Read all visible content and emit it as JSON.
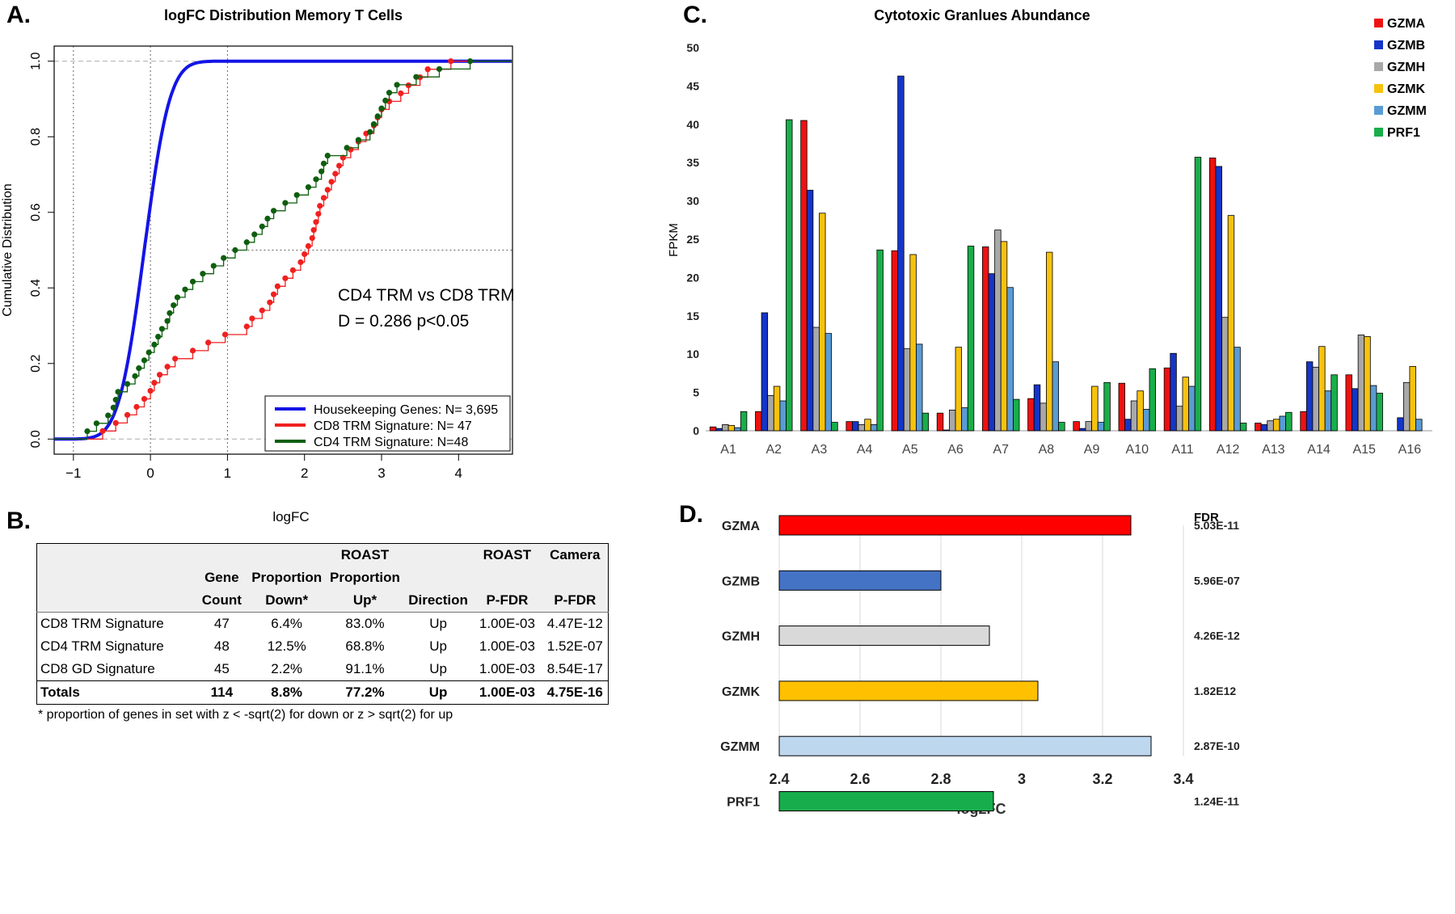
{
  "panels": {
    "a": {
      "letter": "A."
    },
    "b": {
      "letter": "B."
    },
    "c": {
      "letter": "C."
    },
    "d": {
      "letter": "D."
    }
  },
  "colors": {
    "housekeeping": "#1414e6",
    "cd8": "#f02020",
    "cd4": "#0e5e0e",
    "GZMA": "#ee1111",
    "GZMB": "#1535c8",
    "GZMH": "#a8a8a8",
    "GZMK": "#f7c20e",
    "GZMM": "#5a9bd5",
    "PRF1": "#19ae4a",
    "D_GZMA": "#ff0000",
    "D_GZMB": "#4472c4",
    "D_GZMH": "#d9d9d9",
    "D_GZMK": "#ffc000",
    "D_GZMM": "#bdd7ee",
    "D_PRF1": "#17ad4c"
  },
  "chart_data": [
    {
      "id": "A",
      "type": "line",
      "title": "logFC Distribution Memory T Cells",
      "xlabel": "logFC",
      "ylabel": "Cumulative Distribution",
      "xlim": [
        -1.25,
        4.7
      ],
      "ylim": [
        -0.04,
        1.04
      ],
      "xticks": [
        -1,
        0,
        1,
        2,
        3,
        4
      ],
      "yticks": [
        "0.0",
        "0.2",
        "0.4",
        "0.6",
        "0.8",
        "1.0"
      ],
      "reference_lines": {
        "dashed_y": [
          0,
          1
        ],
        "dotted_x": [
          -1,
          0,
          1
        ],
        "dotted_y": [
          0.5
        ]
      },
      "annotation": [
        "CD4 TRM vs CD8 TRM",
        "D = 0.286 p<0.05"
      ],
      "legend_position": "bottom-right",
      "series": [
        {
          "name": "Housekeeping Genes: N= 3,695",
          "kind": "normal_cdf",
          "mean": -0.08,
          "sd": 0.26
        },
        {
          "name": "CD8 TRM Signature: N= 47",
          "kind": "ecdf",
          "x": [
            -0.62,
            -0.45,
            -0.3,
            -0.18,
            -0.08,
            0.0,
            0.05,
            0.12,
            0.22,
            0.32,
            0.55,
            0.75,
            0.97,
            1.25,
            1.32,
            1.45,
            1.55,
            1.6,
            1.65,
            1.75,
            1.85,
            1.95,
            2.0,
            2.05,
            2.1,
            2.12,
            2.15,
            2.18,
            2.2,
            2.25,
            2.3,
            2.35,
            2.4,
            2.45,
            2.5,
            2.6,
            2.7,
            2.8,
            2.9,
            2.95,
            3.0,
            3.1,
            3.25,
            3.35,
            3.5,
            3.6,
            3.9
          ]
        },
        {
          "name": "CD4 TRM Signature: N=48",
          "kind": "ecdf",
          "x": [
            -0.82,
            -0.7,
            -0.55,
            -0.48,
            -0.45,
            -0.42,
            -0.3,
            -0.2,
            -0.15,
            -0.08,
            -0.02,
            0.05,
            0.1,
            0.15,
            0.22,
            0.25,
            0.3,
            0.35,
            0.45,
            0.55,
            0.68,
            0.82,
            0.95,
            1.1,
            1.25,
            1.35,
            1.45,
            1.52,
            1.6,
            1.75,
            1.9,
            2.05,
            2.15,
            2.22,
            2.25,
            2.3,
            2.55,
            2.7,
            2.85,
            2.9,
            2.95,
            3.0,
            3.05,
            3.1,
            3.2,
            3.45,
            3.75,
            4.15
          ]
        }
      ]
    },
    {
      "id": "C",
      "type": "bar",
      "title": "Cytotoxic Granlues Abundance",
      "xlabel": "",
      "ylabel": "FPKM",
      "ylim": [
        0,
        50
      ],
      "yticks": [
        0,
        5,
        10,
        15,
        20,
        25,
        30,
        35,
        40,
        45,
        50
      ],
      "legend_position": "top-right",
      "categories": [
        "A1",
        "A2",
        "A3",
        "A4",
        "A5",
        "A6",
        "A7",
        "A8",
        "A9",
        "A10",
        "A11",
        "A12",
        "A13",
        "A14",
        "A15",
        "A16"
      ],
      "series": [
        {
          "name": "GZMA",
          "values": [
            0.5,
            2.5,
            40.5,
            1.2,
            23.5,
            2.3,
            24.0,
            4.2,
            1.2,
            6.2,
            8.2,
            35.6,
            1.0,
            2.5,
            7.3,
            0
          ]
        },
        {
          "name": "GZMB",
          "values": [
            0.3,
            15.4,
            31.4,
            1.2,
            46.3,
            0.1,
            20.5,
            6.0,
            0.3,
            1.5,
            10.1,
            34.5,
            0.8,
            9.0,
            5.5,
            1.7
          ]
        },
        {
          "name": "GZMH",
          "values": [
            0.8,
            4.6,
            13.5,
            0.8,
            10.7,
            2.7,
            26.2,
            3.6,
            1.2,
            3.9,
            3.2,
            14.8,
            1.3,
            8.3,
            12.5,
            6.3
          ]
        },
        {
          "name": "GZMK",
          "values": [
            0.7,
            5.8,
            28.4,
            1.5,
            23.0,
            10.9,
            24.7,
            23.3,
            5.8,
            5.2,
            7.0,
            28.1,
            1.5,
            11.0,
            12.3,
            8.4
          ]
        },
        {
          "name": "GZMM",
          "values": [
            0.4,
            3.9,
            12.7,
            0.8,
            11.3,
            3.0,
            18.7,
            9.0,
            1.1,
            2.8,
            5.8,
            10.9,
            1.9,
            5.2,
            5.9,
            1.5
          ]
        },
        {
          "name": "PRF1",
          "values": [
            2.5,
            40.6,
            1.1,
            23.6,
            2.3,
            24.1,
            4.1,
            1.1,
            6.3,
            8.1,
            35.7,
            1.0,
            2.4,
            7.3,
            4.9,
            0
          ]
        }
      ]
    },
    {
      "id": "D",
      "type": "bar",
      "orientation": "horizontal",
      "xlabel": "log2FC",
      "xlim": [
        2.4,
        3.4
      ],
      "xticks": [
        "2.4",
        "2.6",
        "2.8",
        "3",
        "3.2",
        "3.4"
      ],
      "fdr_header": "FDR",
      "categories": [
        "GZMA",
        "GZMB",
        "GZMH",
        "GZMK",
        "GZMM",
        "PRF1"
      ],
      "values": [
        3.27,
        2.8,
        2.92,
        3.04,
        3.32,
        2.93
      ],
      "fdr": [
        "5.03E-11",
        "5.96E-07",
        "4.26E-12",
        "1.82E12",
        "2.87E-10",
        "1.24E-11"
      ]
    }
  ],
  "table": {
    "header_rows": [
      [
        "",
        "",
        "",
        "ROAST",
        "",
        "ROAST",
        "Camera"
      ],
      [
        "",
        "Gene",
        "Proportion",
        "Proportion",
        "",
        "",
        ""
      ],
      [
        "",
        "Count",
        "Down*",
        "Up*",
        "Direction",
        "P-FDR",
        "P-FDR"
      ]
    ],
    "rows": [
      [
        "CD8 TRM Signature",
        "47",
        "6.4%",
        "83.0%",
        "Up",
        "1.00E-03",
        "4.47E-12"
      ],
      [
        "CD4 TRM Signature",
        "48",
        "12.5%",
        "68.8%",
        "Up",
        "1.00E-03",
        "1.52E-07"
      ],
      [
        "CD8 GD Signature",
        "45",
        "2.2%",
        "91.1%",
        "Up",
        "1.00E-03",
        "8.54E-17"
      ]
    ],
    "totals": [
      "Totals",
      "114",
      "8.8%",
      "77.2%",
      "Up",
      "1.00E-03",
      "4.75E-16"
    ],
    "footnote": "* proportion of genes in set with z < -sqrt(2) for down or z > sqrt(2) for up"
  }
}
